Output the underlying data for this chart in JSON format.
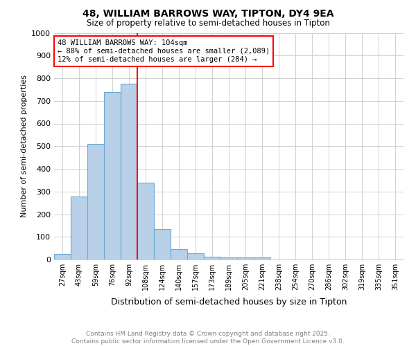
{
  "title1": "48, WILLIAM BARROWS WAY, TIPTON, DY4 9EA",
  "title2": "Size of property relative to semi-detached houses in Tipton",
  "xlabel": "Distribution of semi-detached houses by size in Tipton",
  "ylabel": "Number of semi-detached properties",
  "categories": [
    "27sqm",
    "43sqm",
    "59sqm",
    "76sqm",
    "92sqm",
    "108sqm",
    "124sqm",
    "140sqm",
    "157sqm",
    "173sqm",
    "189sqm",
    "205sqm",
    "221sqm",
    "238sqm",
    "254sqm",
    "270sqm",
    "286sqm",
    "302sqm",
    "319sqm",
    "335sqm",
    "351sqm"
  ],
  "values": [
    25,
    278,
    510,
    740,
    775,
    340,
    135,
    47,
    27,
    13,
    8,
    10,
    10,
    0,
    0,
    0,
    0,
    0,
    0,
    0,
    0
  ],
  "bar_color": "#b8d0e8",
  "bar_edge_color": "#6aaad4",
  "vline_x": 4.5,
  "annotation_text": "48 WILLIAM BARROWS WAY: 104sqm\n← 88% of semi-detached houses are smaller (2,089)\n12% of semi-detached houses are larger (284) →",
  "ylim": [
    0,
    1000
  ],
  "yticks": [
    0,
    100,
    200,
    300,
    400,
    500,
    600,
    700,
    800,
    900,
    1000
  ],
  "footer1": "Contains HM Land Registry data © Crown copyright and database right 2025.",
  "footer2": "Contains public sector information licensed under the Open Government Licence v3.0."
}
